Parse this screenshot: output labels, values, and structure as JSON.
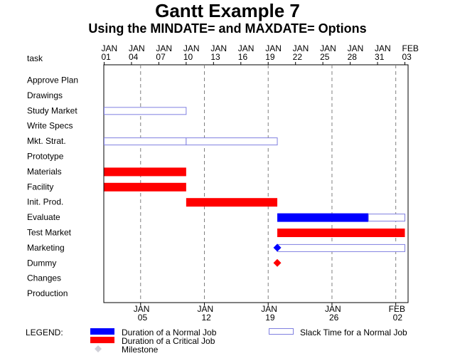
{
  "chart_data": {
    "type": "gantt",
    "title": "Gantt Example 7",
    "subtitle": "Using the MINDATE= and MAXDATE= Options",
    "task_header": "task",
    "xlim": [
      "2000-01-01",
      "2000-02-03"
    ],
    "top_ticks": [
      {
        "date": "2000-01-01",
        "month": "JAN",
        "day": "01"
      },
      {
        "date": "2000-01-04",
        "month": "JAN",
        "day": "04"
      },
      {
        "date": "2000-01-07",
        "month": "JAN",
        "day": "07"
      },
      {
        "date": "2000-01-10",
        "month": "JAN",
        "day": "10"
      },
      {
        "date": "2000-01-13",
        "month": "JAN",
        "day": "13"
      },
      {
        "date": "2000-01-16",
        "month": "JAN",
        "day": "16"
      },
      {
        "date": "2000-01-19",
        "month": "JAN",
        "day": "19"
      },
      {
        "date": "2000-01-22",
        "month": "JAN",
        "day": "22"
      },
      {
        "date": "2000-01-25",
        "month": "JAN",
        "day": "25"
      },
      {
        "date": "2000-01-28",
        "month": "JAN",
        "day": "28"
      },
      {
        "date": "2000-01-31",
        "month": "JAN",
        "day": "31"
      },
      {
        "date": "2000-02-03",
        "month": "FEB",
        "day": "03"
      }
    ],
    "bottom_ticks": [
      {
        "date": "2000-01-05",
        "month": "JAN",
        "day": "05"
      },
      {
        "date": "2000-01-12",
        "month": "JAN",
        "day": "12"
      },
      {
        "date": "2000-01-19",
        "month": "JAN",
        "day": "19"
      },
      {
        "date": "2000-01-26",
        "month": "JAN",
        "day": "26"
      },
      {
        "date": "2000-02-02",
        "month": "FEB",
        "day": "02"
      }
    ],
    "reference_lines": [
      "2000-01-05",
      "2000-01-12",
      "2000-01-19",
      "2000-01-26",
      "2000-02-02"
    ],
    "tasks": [
      {
        "name": "Approve Plan",
        "bars": []
      },
      {
        "name": "Drawings",
        "bars": []
      },
      {
        "name": "Study Market",
        "bars": [
          {
            "kind": "slack",
            "start": "2000-01-01",
            "end": "2000-01-10"
          }
        ]
      },
      {
        "name": "Write Specs",
        "bars": []
      },
      {
        "name": "Mkt. Strat.",
        "bars": [
          {
            "kind": "slack",
            "start": "2000-01-01",
            "end": "2000-01-10"
          },
          {
            "kind": "slack",
            "start": "2000-01-10",
            "end": "2000-01-20"
          }
        ]
      },
      {
        "name": "Prototype",
        "bars": []
      },
      {
        "name": "Materials",
        "bars": [
          {
            "kind": "critical",
            "start": "2000-01-01",
            "end": "2000-01-10"
          }
        ]
      },
      {
        "name": "Facility",
        "bars": [
          {
            "kind": "critical",
            "start": "2000-01-01",
            "end": "2000-01-10"
          }
        ]
      },
      {
        "name": "Init. Prod.",
        "bars": [
          {
            "kind": "critical",
            "start": "2000-01-10",
            "end": "2000-01-20"
          }
        ]
      },
      {
        "name": "Evaluate",
        "bars": [
          {
            "kind": "normal",
            "start": "2000-01-20",
            "end": "2000-01-30"
          },
          {
            "kind": "slack",
            "start": "2000-01-30",
            "end": "2000-02-03"
          }
        ]
      },
      {
        "name": "Test Market",
        "bars": [
          {
            "kind": "critical",
            "start": "2000-01-20",
            "end": "2000-02-03"
          }
        ]
      },
      {
        "name": "Marketing",
        "bars": [
          {
            "kind": "slack",
            "start": "2000-01-20",
            "end": "2000-02-03"
          }
        ],
        "milestones": [
          {
            "kind": "normal",
            "date": "2000-01-20"
          }
        ]
      },
      {
        "name": "Dummy",
        "bars": [],
        "milestones": [
          {
            "kind": "critical",
            "date": "2000-01-20"
          }
        ]
      },
      {
        "name": "Changes",
        "bars": []
      },
      {
        "name": "Production",
        "bars": []
      }
    ],
    "legend": {
      "label": "LEGEND:",
      "items": [
        {
          "kind": "normal",
          "text": "Duration of a Normal Job"
        },
        {
          "kind": "slack",
          "text": "Slack Time for a Normal Job"
        },
        {
          "kind": "critical",
          "text": "Duration of a Critical Job"
        },
        {
          "kind": "milestone",
          "text": "Milestone"
        }
      ]
    },
    "colors": {
      "normal": "#0000ff",
      "critical": "#ff0000",
      "slack_stroke": "#8080e0",
      "milestone_legend": "#d0d0d8",
      "ref_line": "#808080",
      "frame": "#000000"
    }
  }
}
